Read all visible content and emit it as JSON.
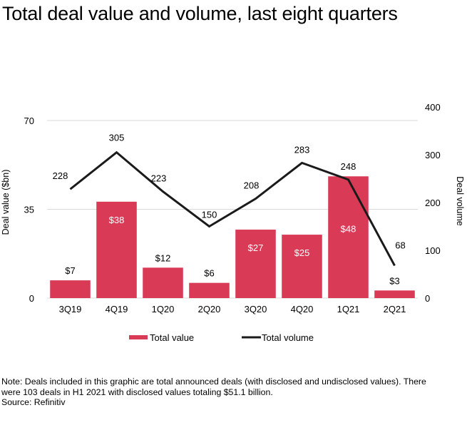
{
  "title": "Total deal value and volume, last eight quarters",
  "notes": {
    "line1": "Note: Deals included in this graphic are total announced deals (with disclosed and undisclosed values).  There",
    "line2": "were 103 deals in H1 2021 with disclosed values totaling $51.1 billion.",
    "source": "Source: Refinitiv"
  },
  "colors": {
    "bar": "#D93A55",
    "line": "#1A1A1A",
    "grid": "#D9D9D9"
  },
  "chart_data": {
    "type": "bar",
    "title": "Total deal value and volume, last eight quarters",
    "categories": [
      "3Q19",
      "4Q19",
      "1Q20",
      "2Q20",
      "3Q20",
      "4Q20",
      "1Q21",
      "2Q21"
    ],
    "series": [
      {
        "name": "Total value",
        "type": "bar",
        "axis": "left",
        "values": [
          7,
          38,
          12,
          6,
          27,
          25,
          48,
          3
        ],
        "labels": [
          "$7",
          "$38",
          "$12",
          "$6",
          "$27",
          "$25",
          "$48",
          "$3"
        ],
        "label_inside": [
          false,
          true,
          false,
          false,
          true,
          true,
          true,
          false
        ]
      },
      {
        "name": "Total volume",
        "type": "line",
        "axis": "right",
        "values": [
          228,
          305,
          223,
          150,
          208,
          283,
          248,
          68
        ],
        "labels": [
          "228",
          "305",
          "223",
          "150",
          "208",
          "283",
          "248",
          "68"
        ]
      }
    ],
    "ylabel": "Deal value  ($bn)",
    "y2label": "Deal volume",
    "xlabel": "",
    "ylim": [
      0,
      70
    ],
    "y2lim": [
      0,
      400
    ],
    "yticks": [
      0,
      35,
      70
    ],
    "y2ticks": [
      0,
      100,
      200,
      300,
      400
    ],
    "grid": true,
    "legend": {
      "position": "bottom",
      "entries": [
        "Total value",
        "Total volume"
      ]
    }
  }
}
